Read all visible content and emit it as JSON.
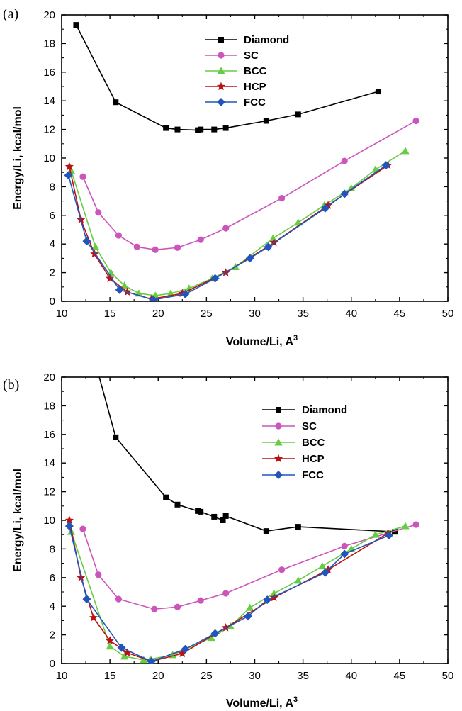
{
  "chart_data": [
    {
      "type": "line",
      "panel_label": "(a)",
      "xlabel": "Volume/Li, A",
      "xlabel_sup": "3",
      "ylabel": "Energy/Li, kcal/mol",
      "xlim": [
        10,
        50
      ],
      "ylim": [
        0,
        20
      ],
      "xticks": [
        10,
        15,
        20,
        25,
        30,
        35,
        40,
        45,
        50
      ],
      "yticks": [
        0,
        2,
        4,
        6,
        8,
        10,
        12,
        14,
        16,
        18,
        20
      ],
      "legend_position": "top-center",
      "series": [
        {
          "name": "Diamond",
          "color": "#000000",
          "marker": "square",
          "x": [
            11.5,
            15.6,
            20.8,
            22.0,
            24.1,
            24.4,
            25.8,
            27.0,
            31.2,
            34.5,
            42.8
          ],
          "y": [
            19.3,
            13.9,
            12.1,
            12.0,
            11.95,
            12.0,
            12.0,
            12.1,
            12.6,
            13.05,
            14.65
          ]
        },
        {
          "name": "SC",
          "color": "#cc55bb",
          "marker": "circle",
          "x": [
            12.2,
            13.8,
            15.9,
            17.8,
            19.7,
            22.0,
            24.4,
            27.0,
            32.8,
            39.3,
            46.7
          ],
          "y": [
            8.7,
            6.2,
            4.6,
            3.8,
            3.6,
            3.75,
            4.3,
            5.1,
            7.2,
            9.8,
            12.6
          ]
        },
        {
          "name": "BCC",
          "color": "#66cc44",
          "marker": "triangle",
          "x": [
            11.0,
            13.5,
            15.1,
            16.5,
            18.0,
            19.7,
            21.3,
            23.2,
            25.6,
            28.0,
            31.9,
            34.5,
            37.2,
            40.0,
            42.5,
            45.6
          ],
          "y": [
            9.1,
            3.8,
            2.0,
            1.1,
            0.55,
            0.4,
            0.55,
            0.9,
            1.6,
            2.4,
            4.4,
            5.5,
            6.7,
            7.9,
            9.2,
            10.5
          ]
        },
        {
          "name": "HCP",
          "color": "#bb1111",
          "marker": "star",
          "x": [
            10.8,
            12.0,
            13.4,
            15.0,
            16.8,
            19.3,
            22.5,
            27.0,
            32.0,
            37.6,
            43.8
          ],
          "y": [
            9.4,
            5.7,
            3.3,
            1.6,
            0.65,
            0.15,
            0.55,
            2.0,
            4.1,
            6.7,
            9.5
          ]
        },
        {
          "name": "FCC",
          "color": "#2255bb",
          "marker": "diamond",
          "x": [
            10.7,
            12.6,
            16.0,
            19.5,
            22.8,
            25.9,
            29.5,
            31.4,
            37.3,
            39.3,
            43.6
          ],
          "y": [
            8.8,
            4.2,
            0.8,
            0.1,
            0.5,
            1.6,
            3.0,
            3.8,
            6.5,
            7.5,
            9.5
          ]
        }
      ]
    },
    {
      "type": "line",
      "panel_label": "(b)",
      "xlabel": "Volume/Li, A",
      "xlabel_sup": "3",
      "ylabel": "Energy/Li, kcal/mol",
      "xlim": [
        10,
        50
      ],
      "ylim": [
        0,
        20
      ],
      "xticks": [
        10,
        15,
        20,
        25,
        30,
        35,
        40,
        45,
        50
      ],
      "yticks": [
        0,
        2,
        4,
        6,
        8,
        10,
        12,
        14,
        16,
        18,
        20
      ],
      "legend_position": "top-right",
      "series": [
        {
          "name": "Diamond",
          "color": "#000000",
          "marker": "square",
          "x": [
            13.7,
            15.6,
            20.8,
            22.0,
            24.1,
            24.4,
            25.8,
            26.7,
            27.0,
            31.2,
            34.5,
            44.5
          ],
          "y": [
            20.5,
            15.8,
            11.6,
            11.1,
            10.65,
            10.6,
            10.25,
            10.0,
            10.3,
            9.25,
            9.55,
            9.2
          ]
        },
        {
          "name": "SC",
          "color": "#cc55bb",
          "marker": "circle",
          "x": [
            12.2,
            13.8,
            15.9,
            19.6,
            22.0,
            24.4,
            27.0,
            32.8,
            39.3,
            46.7
          ],
          "y": [
            9.4,
            6.2,
            4.5,
            3.8,
            3.95,
            4.4,
            4.9,
            6.55,
            8.2,
            9.7
          ]
        },
        {
          "name": "BCC",
          "color": "#66cc44",
          "marker": "triangle",
          "x": [
            11.0,
            15.0,
            16.5,
            18.5,
            19.2,
            21.5,
            25.5,
            27.5,
            29.5,
            32.0,
            34.5,
            37.0,
            40.0,
            42.5,
            45.6
          ],
          "y": [
            9.2,
            1.2,
            0.5,
            0.25,
            0.3,
            0.6,
            1.8,
            2.6,
            3.9,
            4.9,
            5.8,
            6.8,
            8.0,
            9.0,
            9.6
          ]
        },
        {
          "name": "HCP",
          "color": "#bb1111",
          "marker": "star",
          "x": [
            10.8,
            12.0,
            13.3,
            15.0,
            16.8,
            19.3,
            22.5,
            27.0,
            32.0,
            37.6,
            43.8
          ],
          "y": [
            10.0,
            6.0,
            3.2,
            1.6,
            0.75,
            0.15,
            0.7,
            2.5,
            4.6,
            6.55,
            9.1
          ]
        },
        {
          "name": "FCC",
          "color": "#2255bb",
          "marker": "diamond",
          "x": [
            10.8,
            12.6,
            16.2,
            19.3,
            22.8,
            25.9,
            29.3,
            31.3,
            37.3,
            39.3,
            43.9
          ],
          "y": [
            9.6,
            4.5,
            1.1,
            0.15,
            1.0,
            2.1,
            3.3,
            4.45,
            6.35,
            7.65,
            8.95
          ]
        }
      ]
    }
  ]
}
